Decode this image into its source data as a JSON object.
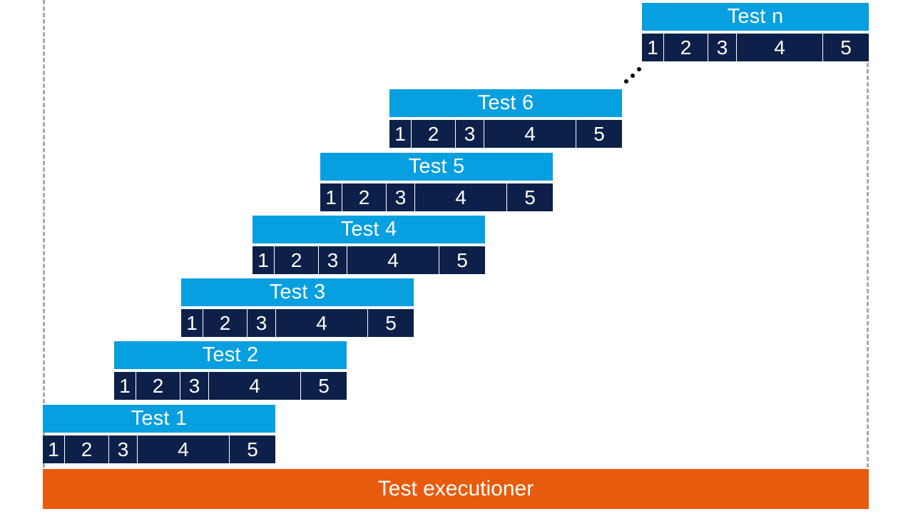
{
  "tests": [
    {
      "title": "Test 1",
      "phases": [
        "1",
        "2",
        "3",
        "4",
        "5"
      ]
    },
    {
      "title": "Test 2",
      "phases": [
        "1",
        "2",
        "3",
        "4",
        "5"
      ]
    },
    {
      "title": "Test 3",
      "phases": [
        "1",
        "2",
        "3",
        "4",
        "5"
      ]
    },
    {
      "title": "Test 4",
      "phases": [
        "1",
        "2",
        "3",
        "4",
        "5"
      ]
    },
    {
      "title": "Test 5",
      "phases": [
        "1",
        "2",
        "3",
        "4",
        "5"
      ]
    },
    {
      "title": "Test 6",
      "phases": [
        "1",
        "2",
        "3",
        "4",
        "5"
      ]
    },
    {
      "title": "Test n",
      "phases": [
        "1",
        "2",
        "3",
        "4",
        "5"
      ]
    }
  ],
  "executioner": {
    "label": "Test executioner"
  },
  "colors": {
    "test_title": "#069fdf",
    "phase_bar": "#0d2049",
    "executioner": "#e95b0c"
  }
}
